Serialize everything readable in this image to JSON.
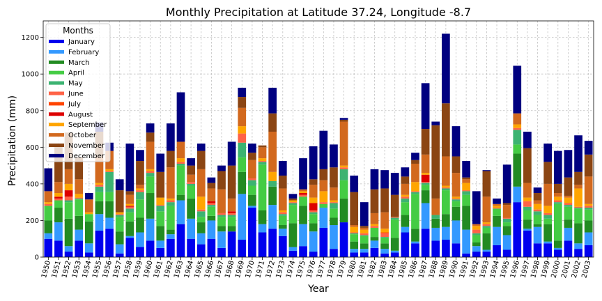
{
  "chart_data": {
    "type": "bar",
    "stacked": true,
    "title": "Monthly Precipitation at Latitude 37.24, Longitude -8.7",
    "xlabel": "Year",
    "ylabel": "Precipitation (mm)",
    "ylim": [
      0,
      1290
    ],
    "yticks": [
      0,
      200,
      400,
      600,
      800,
      1000,
      1200
    ],
    "grid": true,
    "legend_title": "Months",
    "legend_position": "top-left",
    "categories": [
      "1950",
      "1951",
      "1952",
      "1953",
      "1954",
      "1955",
      "1956",
      "1957",
      "1958",
      "1959",
      "1960",
      "1961",
      "1962",
      "1963",
      "1964",
      "1965",
      "1966",
      "1967",
      "1968",
      "1969",
      "1970",
      "1971",
      "1972",
      "1973",
      "1974",
      "1975",
      "1976",
      "1977",
      "1978",
      "1979",
      "1980",
      "1981",
      "1982",
      "1983",
      "1984",
      "1985",
      "1986",
      "1987",
      "1988",
      "1989",
      "1990",
      "1991",
      "1992",
      "1993",
      "1994",
      "1995",
      "1996",
      "1997",
      "1998",
      "1999",
      "2000",
      "2001",
      "2002",
      "2003"
    ],
    "series": [
      {
        "name": "January",
        "color": "#0000ee",
        "values": [
          100,
          90,
          30,
          90,
          25,
          145,
          155,
          20,
          105,
          55,
          90,
          50,
          100,
          180,
          100,
          70,
          100,
          50,
          140,
          95,
          270,
          135,
          155,
          115,
          35,
          60,
          30,
          160,
          45,
          190,
          25,
          25,
          50,
          20,
          25,
          135,
          75,
          155,
          90,
          95,
          75,
          20,
          30,
          30,
          65,
          40,
          300,
          145,
          75,
          75,
          40,
          90,
          45,
          65
        ]
      },
      {
        "name": "February",
        "color": "#3399ff",
        "values": [
          30,
          100,
          30,
          60,
          50,
          90,
          60,
          50,
          10,
          80,
          120,
          40,
          25,
          130,
          110,
          60,
          100,
          90,
          0,
          250,
          10,
          45,
          130,
          40,
          20,
          120,
          110,
          110,
          130,
          0,
          20,
          20,
          40,
          25,
          10,
          30,
          10,
          140,
          70,
          70,
          125,
          130,
          30,
          10,
          100,
          80,
          85,
          10,
          90,
          10,
          10,
          70,
          30,
          70
        ]
      },
      {
        "name": "March",
        "color": "#228b22",
        "values": [
          70,
          80,
          150,
          75,
          120,
          70,
          90,
          70,
          80,
          80,
          140,
          80,
          25,
          30,
          110,
          60,
          25,
          30,
          30,
          120,
          60,
          75,
          100,
          20,
          130,
          100,
          45,
          0,
          40,
          130,
          40,
          30,
          20,
          30,
          70,
          65,
          70,
          70,
          50,
          70,
          75,
          130,
          20,
          90,
          60,
          50,
          180,
          50,
          15,
          95,
          40,
          45,
          110,
          65
        ]
      },
      {
        "name": "April",
        "color": "#44cc44",
        "values": [
          80,
          40,
          90,
          90,
          40,
          50,
          50,
          80,
          50,
          100,
          90,
          80,
          130,
          160,
          70,
          30,
          50,
          50,
          50,
          80,
          50,
          250,
          0,
          50,
          100,
          50,
          50,
          20,
          50,
          100,
          40,
          40,
          50,
          30,
          100,
          70,
          190,
          30,
          0,
          130,
          30,
          60,
          40,
          30,
          40,
          20,
          50,
          50,
          50,
          30,
          200,
          70,
          80,
          60
        ]
      },
      {
        "name": "May",
        "color": "#3cb371",
        "values": [
          0,
          0,
          10,
          5,
          0,
          30,
          110,
          10,
          20,
          40,
          20,
          30,
          20,
          10,
          10,
          30,
          10,
          10,
          10,
          80,
          30,
          15,
          30,
          10,
          10,
          0,
          10,
          0,
          30,
          60,
          5,
          5,
          0,
          5,
          10,
          20,
          10,
          10,
          20,
          10,
          10,
          20,
          10,
          10,
          0,
          20,
          80,
          20,
          20,
          20,
          10,
          10,
          5,
          10
        ]
      },
      {
        "name": "June",
        "color": "#ff6347",
        "values": [
          10,
          10,
          20,
          5,
          0,
          10,
          5,
          5,
          10,
          10,
          10,
          5,
          10,
          10,
          10,
          10,
          10,
          10,
          10,
          50,
          10,
          5,
          0,
          10,
          5,
          10,
          10,
          10,
          5,
          10,
          5,
          10,
          10,
          20,
          5,
          10,
          5,
          5,
          0,
          5,
          5,
          5,
          20,
          10,
          5,
          5,
          10,
          30,
          10,
          10,
          10,
          10,
          5,
          10
        ]
      },
      {
        "name": "July",
        "color": "#ff4500",
        "values": [
          0,
          0,
          0,
          0,
          0,
          0,
          0,
          0,
          0,
          0,
          0,
          0,
          0,
          0,
          0,
          0,
          0,
          0,
          0,
          0,
          0,
          0,
          0,
          0,
          0,
          0,
          0,
          0,
          0,
          0,
          0,
          0,
          0,
          5,
          0,
          0,
          0,
          0,
          0,
          0,
          0,
          0,
          0,
          0,
          0,
          0,
          0,
          0,
          0,
          0,
          0,
          0,
          0,
          0
        ]
      },
      {
        "name": "August",
        "color": "#dd0000",
        "values": [
          0,
          10,
          35,
          0,
          0,
          0,
          0,
          0,
          5,
          0,
          0,
          0,
          0,
          0,
          0,
          0,
          10,
          0,
          10,
          0,
          0,
          0,
          0,
          0,
          0,
          10,
          40,
          0,
          0,
          0,
          0,
          0,
          0,
          0,
          0,
          0,
          0,
          40,
          0,
          0,
          0,
          0,
          0,
          0,
          0,
          0,
          0,
          0,
          0,
          0,
          0,
          0,
          0,
          0
        ]
      },
      {
        "name": "September",
        "color": "#ffa500",
        "values": [
          10,
          20,
          35,
          20,
          10,
          10,
          10,
          10,
          10,
          10,
          10,
          40,
          10,
          20,
          0,
          70,
          0,
          0,
          0,
          40,
          0,
          15,
          50,
          10,
          10,
          10,
          30,
          60,
          10,
          10,
          30,
          20,
          10,
          20,
          0,
          10,
          50,
          10,
          0,
          10,
          10,
          40,
          20,
          10,
          10,
          0,
          20,
          20,
          30,
          40,
          20,
          30,
          100,
          10
        ]
      },
      {
        "name": "October",
        "color": "#d2691e",
        "values": [
          60,
          60,
          80,
          80,
          70,
          140,
          100,
          0,
          50,
          20,
          150,
          0,
          170,
          90,
          40,
          150,
          70,
          130,
          70,
          100,
          100,
          60,
          220,
          120,
          0,
          10,
          70,
          60,
          70,
          240,
          10,
          10,
          60,
          90,
          0,
          60,
          100,
          100,
          90,
          160,
          130,
          20,
          10,
          140,
          10,
          70,
          60,
          80,
          20,
          120,
          20,
          10,
          20,
          150
        ]
      },
      {
        "name": "November",
        "color": "#8b4513",
        "values": [
          0,
          200,
          200,
          120,
          0,
          140,
          0,
          120,
          20,
          130,
          50,
          140,
          90,
          0,
          50,
          100,
          30,
          100,
          180,
          60,
          40,
          10,
          100,
          70,
          10,
          0,
          30,
          60,
          110,
          10,
          180,
          10,
          130,
          130,
          120,
          40,
          20,
          140,
          400,
          290,
          90,
          10,
          0,
          140,
          0,
          10,
          0,
          190,
          40,
          120,
          50,
          100,
          70,
          120
        ]
      },
      {
        "name": "December",
        "color": "#000080",
        "values": [
          125,
          0,
          0,
          0,
          35,
          50,
          45,
          60,
          260,
          60,
          50,
          100,
          150,
          270,
          40,
          40,
          30,
          30,
          130,
          50,
          50,
          0,
          140,
          80,
          25,
          170,
          180,
          210,
          125,
          10,
          90,
          130,
          110,
          100,
          120,
          50,
          40,
          250,
          20,
          380,
          165,
          90,
          180,
          5,
          30,
          210,
          260,
          90,
          30,
          100,
          180,
          150,
          200,
          75
        ]
      }
    ]
  }
}
